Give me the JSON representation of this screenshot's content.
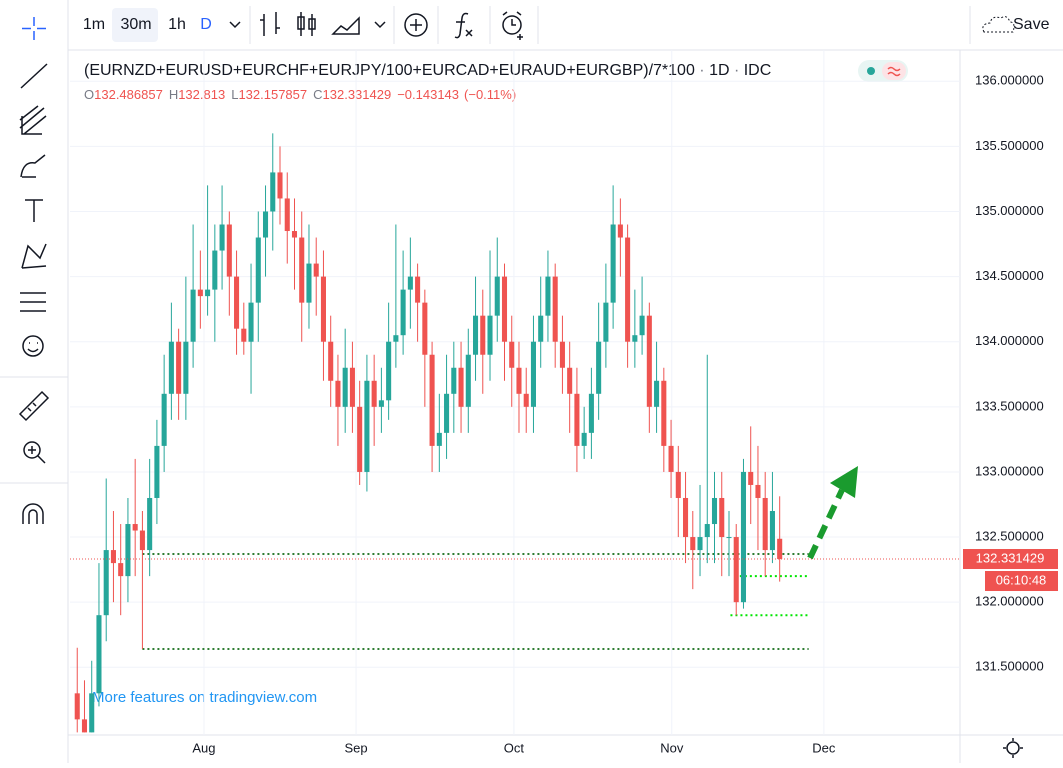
{
  "toolbar": {
    "intervals": [
      "1m",
      "30m",
      "1h",
      "D"
    ],
    "save": "Save"
  },
  "chart_data": {
    "type": "candlestick",
    "symbol": "(EURNZD+EURUSD+EURCHF+EURJPY/100+EURCAD+EURAUD+EURGBP)/7*100",
    "interval": "1D",
    "source": "IDC",
    "legend_keys": [
      "O",
      "H",
      "L",
      "C"
    ],
    "change": {
      "value": -0.143143,
      "label": "−0.143143"
    },
    "change_pct": {
      "value": -0.11,
      "label": "(−0.11%)"
    },
    "countdown": "06:10:48",
    "watermark": "More features on tradingview.com",
    "up_color": "#26a69a",
    "down_color": "#ef5350",
    "xlim": [
      -1,
      121.9
    ],
    "xticks": [
      {
        "value": 17.5,
        "label": "Aug"
      },
      {
        "value": 38.5,
        "label": "Sep"
      },
      {
        "value": 60.3,
        "label": "Oct"
      },
      {
        "value": 82.1,
        "label": "Nov"
      },
      {
        "value": 103.1,
        "label": "Dec"
      }
    ],
    "ylim": [
      130.98,
      136.24
    ],
    "yticks": [
      {
        "value": 131.5,
        "label": "131.500000"
      },
      {
        "value": 132,
        "label": "132.000000"
      },
      {
        "value": 132.5,
        "label": "132.500000"
      },
      {
        "value": 133,
        "label": "133.000000"
      },
      {
        "value": 133.5,
        "label": "133.500000"
      },
      {
        "value": 134,
        "label": "134.000000"
      },
      {
        "value": 134.5,
        "label": "134.500000"
      },
      {
        "value": 135,
        "label": "135.000000"
      },
      {
        "value": 135.5,
        "label": "135.500000"
      },
      {
        "value": 136,
        "label": "136.000000"
      }
    ],
    "grid": true,
    "horizontal_lines": [
      {
        "value": 132.37,
        "from": 9,
        "to": 101,
        "color": "#2e7d32"
      },
      {
        "value": 131.64,
        "from": 9,
        "to": 101,
        "color": "#2e7d32"
      },
      {
        "value": 132.2,
        "from": 91.5,
        "to": 101,
        "color": "#00e600"
      },
      {
        "value": 131.9,
        "from": 90.2,
        "to": 101,
        "color": "#00e600"
      }
    ],
    "candles": [
      [
        131.3,
        131.65,
        131.0,
        131.1
      ],
      [
        131.1,
        131.4,
        131.0,
        131.0
      ],
      [
        131.0,
        131.55,
        131.0,
        131.3
      ],
      [
        131.3,
        132.3,
        131.2,
        131.9
      ],
      [
        131.9,
        132.95,
        131.7,
        132.4
      ],
      [
        132.4,
        132.7,
        132.0,
        132.3
      ],
      [
        132.3,
        132.6,
        131.9,
        132.2
      ],
      [
        132.2,
        132.8,
        132.0,
        132.6
      ],
      [
        132.6,
        133.1,
        132.2,
        132.55
      ],
      [
        132.55,
        132.7,
        131.64,
        132.4
      ],
      [
        132.4,
        133.1,
        132.2,
        132.8
      ],
      [
        132.8,
        133.4,
        132.6,
        133.2
      ],
      [
        133.2,
        133.9,
        133.0,
        133.6
      ],
      [
        133.6,
        134.3,
        133.4,
        134.0
      ],
      [
        134.0,
        134.1,
        133.4,
        133.6
      ],
      [
        133.6,
        134.5,
        133.4,
        134.0
      ],
      [
        134.0,
        134.9,
        133.8,
        134.4
      ],
      [
        134.4,
        134.7,
        134.1,
        134.35
      ],
      [
        134.35,
        135.2,
        134.2,
        134.4
      ],
      [
        134.4,
        134.9,
        134.0,
        134.7
      ],
      [
        134.7,
        135.2,
        134.4,
        134.9
      ],
      [
        134.9,
        135.0,
        134.2,
        134.5
      ],
      [
        134.5,
        134.7,
        133.9,
        134.1
      ],
      [
        134.1,
        134.3,
        133.9,
        134.0
      ],
      [
        134.0,
        134.6,
        133.6,
        134.3
      ],
      [
        134.3,
        135.0,
        134.0,
        134.8
      ],
      [
        134.8,
        135.2,
        134.5,
        135.0
      ],
      [
        135.0,
        135.6,
        134.7,
        135.3
      ],
      [
        135.3,
        135.5,
        134.9,
        135.1
      ],
      [
        135.1,
        135.3,
        134.6,
        134.85
      ],
      [
        134.85,
        135.1,
        134.4,
        134.8
      ],
      [
        134.8,
        135.0,
        134.0,
        134.3
      ],
      [
        134.3,
        134.9,
        134.1,
        134.6
      ],
      [
        134.6,
        134.8,
        134.2,
        134.5
      ],
      [
        134.5,
        134.7,
        133.7,
        134.0
      ],
      [
        134.0,
        134.2,
        133.5,
        133.7
      ],
      [
        133.7,
        133.9,
        133.2,
        133.5
      ],
      [
        133.5,
        134.1,
        133.3,
        133.8
      ],
      [
        133.8,
        134.0,
        133.3,
        133.5
      ],
      [
        133.5,
        133.7,
        132.9,
        133.0
      ],
      [
        133.0,
        133.9,
        132.85,
        133.7
      ],
      [
        133.7,
        133.9,
        133.2,
        133.5
      ],
      [
        133.5,
        133.8,
        133.3,
        133.55
      ],
      [
        133.55,
        134.3,
        133.4,
        134.0
      ],
      [
        134.0,
        134.9,
        133.8,
        134.05
      ],
      [
        134.05,
        134.7,
        133.9,
        134.4
      ],
      [
        134.4,
        134.8,
        134.1,
        134.5
      ],
      [
        134.5,
        134.6,
        134.0,
        134.3
      ],
      [
        134.3,
        134.4,
        133.5,
        133.9
      ],
      [
        133.9,
        134.0,
        133.0,
        133.2
      ],
      [
        133.2,
        133.6,
        133.0,
        133.3
      ],
      [
        133.3,
        133.9,
        133.1,
        133.6
      ],
      [
        133.6,
        134.0,
        133.3,
        133.8
      ],
      [
        133.8,
        134.0,
        133.3,
        133.5
      ],
      [
        133.5,
        134.1,
        133.3,
        133.9
      ],
      [
        133.9,
        134.5,
        133.7,
        134.2
      ],
      [
        134.2,
        134.4,
        133.6,
        133.9
      ],
      [
        133.9,
        134.7,
        133.7,
        134.2
      ],
      [
        134.2,
        134.8,
        134.0,
        134.5
      ],
      [
        134.5,
        134.6,
        133.7,
        134.0
      ],
      [
        134.0,
        134.2,
        133.5,
        133.8
      ],
      [
        133.8,
        134.0,
        133.3,
        133.6
      ],
      [
        133.6,
        133.8,
        133.3,
        133.5
      ],
      [
        133.5,
        134.2,
        133.3,
        134.0
      ],
      [
        134.0,
        134.5,
        133.8,
        134.2
      ],
      [
        134.2,
        134.7,
        134.0,
        134.5
      ],
      [
        134.5,
        134.6,
        133.8,
        134.0
      ],
      [
        134.0,
        134.2,
        133.6,
        133.8
      ],
      [
        133.8,
        134.0,
        133.3,
        133.6
      ],
      [
        133.6,
        133.8,
        133.0,
        133.2
      ],
      [
        133.2,
        133.5,
        133.1,
        133.3
      ],
      [
        133.3,
        133.8,
        133.1,
        133.6
      ],
      [
        133.6,
        134.3,
        133.4,
        134.0
      ],
      [
        134.0,
        134.6,
        133.8,
        134.3
      ],
      [
        134.3,
        135.2,
        134.1,
        134.9
      ],
      [
        134.9,
        135.1,
        134.5,
        134.8
      ],
      [
        134.8,
        134.9,
        133.8,
        134.0
      ],
      [
        134.0,
        134.4,
        133.8,
        134.05
      ],
      [
        134.05,
        134.5,
        133.9,
        134.2
      ],
      [
        134.2,
        134.3,
        133.3,
        133.5
      ],
      [
        133.5,
        134.0,
        133.3,
        133.7
      ],
      [
        133.7,
        133.8,
        133.0,
        133.2
      ],
      [
        133.2,
        133.4,
        132.8,
        133.0
      ],
      [
        133.0,
        133.2,
        132.5,
        132.8
      ],
      [
        132.8,
        133.0,
        132.3,
        132.5
      ],
      [
        132.5,
        132.7,
        132.1,
        132.4
      ],
      [
        132.4,
        132.9,
        132.2,
        132.5
      ],
      [
        132.5,
        133.9,
        132.3,
        132.6
      ],
      [
        132.6,
        133.0,
        132.3,
        132.8
      ],
      [
        132.8,
        133.0,
        132.2,
        132.5
      ],
      [
        132.5,
        132.7,
        132.2,
        132.5
      ],
      [
        132.5,
        132.6,
        131.9,
        132.0
      ],
      [
        132.0,
        133.1,
        131.95,
        133.0
      ],
      [
        133.0,
        133.35,
        132.6,
        132.9
      ],
      [
        132.9,
        133.2,
        132.4,
        132.8
      ],
      [
        132.8,
        133.0,
        132.2,
        132.4
      ],
      [
        132.4,
        133.0,
        132.3,
        132.7
      ],
      [
        132.486857,
        132.813,
        132.157857,
        132.331429
      ]
    ]
  }
}
